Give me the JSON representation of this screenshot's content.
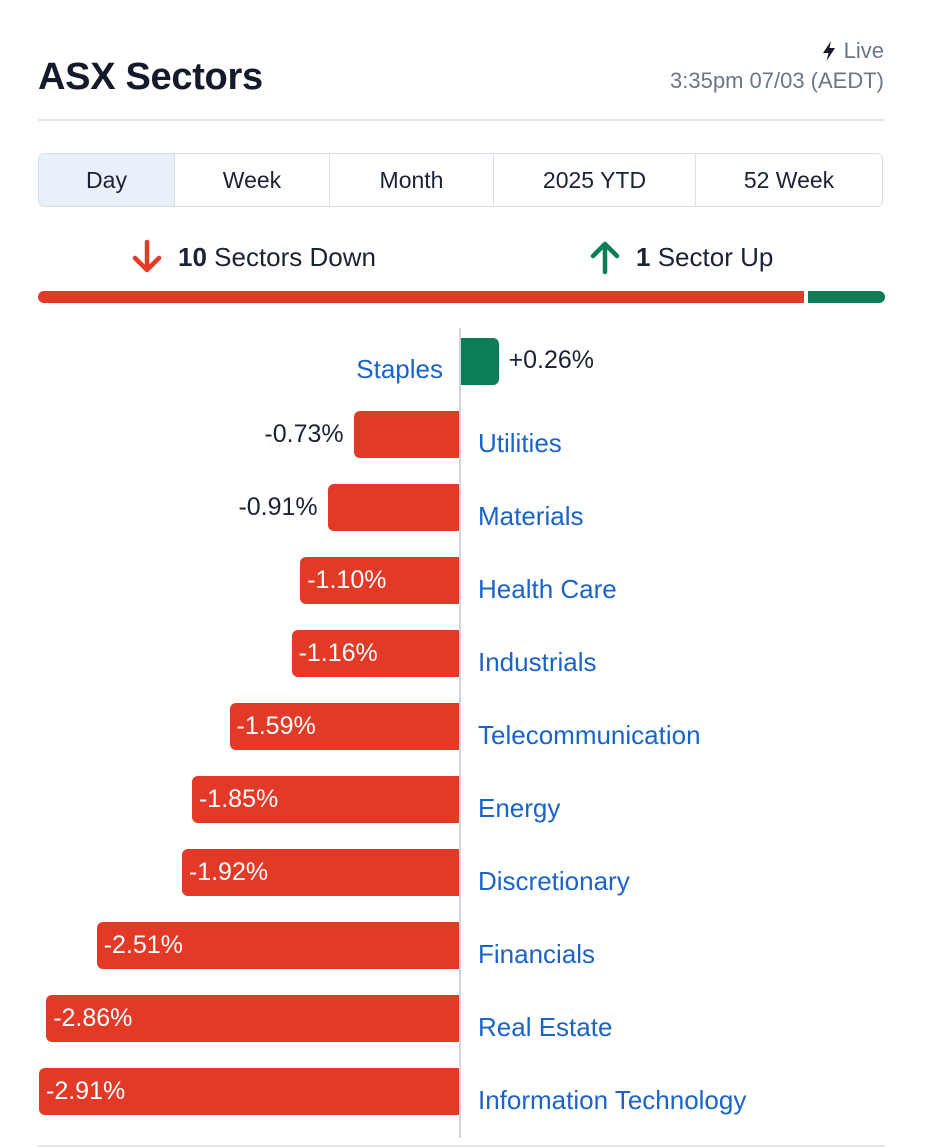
{
  "header": {
    "title": "ASX Sectors",
    "live_label": "Live",
    "timestamp": "3:35pm 07/03 (AEDT)"
  },
  "tabs": [
    {
      "label": "Day",
      "active": true
    },
    {
      "label": "Week",
      "active": false
    },
    {
      "label": "Month",
      "active": false
    },
    {
      "label": "2025 YTD",
      "active": false
    },
    {
      "label": "52 Week",
      "active": false
    }
  ],
  "summary": {
    "down_count": "10",
    "down_label": "Sectors Down",
    "up_count": "1",
    "up_label": "Sector Up"
  },
  "colors": {
    "negative": "#e23a26",
    "positive": "#0d7c59",
    "link": "#1a63c9"
  },
  "chart_data": {
    "type": "bar",
    "orientation": "horizontal-diverging",
    "categories": [
      "Staples",
      "Utilities",
      "Materials",
      "Health Care",
      "Industrials",
      "Telecommunication",
      "Energy",
      "Discretionary",
      "Financials",
      "Real Estate",
      "Information Technology"
    ],
    "values": [
      0.26,
      -0.73,
      -0.91,
      -1.1,
      -1.16,
      -1.59,
      -1.85,
      -1.92,
      -2.51,
      -2.86,
      -2.91
    ],
    "value_labels": [
      "+0.26%",
      "-0.73%",
      "-0.91%",
      "-1.10%",
      "-1.16%",
      "-1.59%",
      "-1.85%",
      "-1.92%",
      "-2.51%",
      "-2.86%",
      "-2.91%"
    ],
    "unit": "%"
  }
}
